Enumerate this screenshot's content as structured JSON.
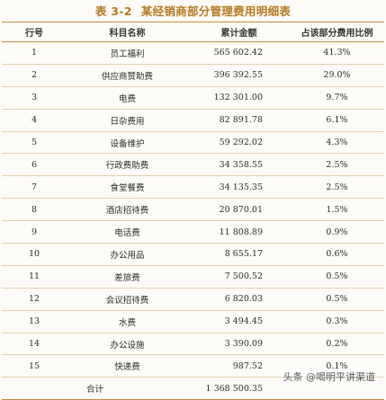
{
  "title": {
    "number": "表 3-2",
    "text": "某经销商部分管理费用明细表"
  },
  "headers": [
    "行号",
    "科目名称",
    "累计金额",
    "占该部分费用比例"
  ],
  "rows": [
    {
      "no": "1",
      "name": "员工福利",
      "amount": "565 602.42",
      "pct": "41.3%"
    },
    {
      "no": "2",
      "name": "供应商赞助费",
      "amount": "396 392.55",
      "pct": "29.0%"
    },
    {
      "no": "3",
      "name": "电费",
      "amount": "132 301.00",
      "pct": "9.7%"
    },
    {
      "no": "4",
      "name": "日杂费用",
      "amount": "82 891.78",
      "pct": "6.1%"
    },
    {
      "no": "5",
      "name": "设备维护",
      "amount": "59 292.02",
      "pct": "4.3%"
    },
    {
      "no": "6",
      "name": "行政费助费",
      "amount": "34 358.55",
      "pct": "2.5%"
    },
    {
      "no": "7",
      "name": "食堂餐费",
      "amount": "34 135.35",
      "pct": "2.5%"
    },
    {
      "no": "8",
      "name": "酒店招待费",
      "amount": "20 870.01",
      "pct": "1.5%"
    },
    {
      "no": "9",
      "name": "电话费",
      "amount": "11 808.89",
      "pct": "0.9%"
    },
    {
      "no": "10",
      "name": "办公用品",
      "amount": "8 655.17",
      "pct": "0.6%"
    },
    {
      "no": "11",
      "name": "差旅费",
      "amount": "7 500.52",
      "pct": "0.5%"
    },
    {
      "no": "12",
      "name": "会议招待费",
      "amount": "6 820.03",
      "pct": "0.5%"
    },
    {
      "no": "13",
      "name": "水费",
      "amount": "3 494.45",
      "pct": "0.3%"
    },
    {
      "no": "14",
      "name": "办公设施",
      "amount": "3 390.09",
      "pct": "0.2%"
    },
    {
      "no": "15",
      "name": "快递费",
      "amount": "987.52",
      "pct": "0.1%"
    }
  ],
  "total": {
    "label": "合计",
    "amount": "1 368 500.35",
    "pct": ""
  },
  "watermark": "头条 @喝明平讲渠道"
}
